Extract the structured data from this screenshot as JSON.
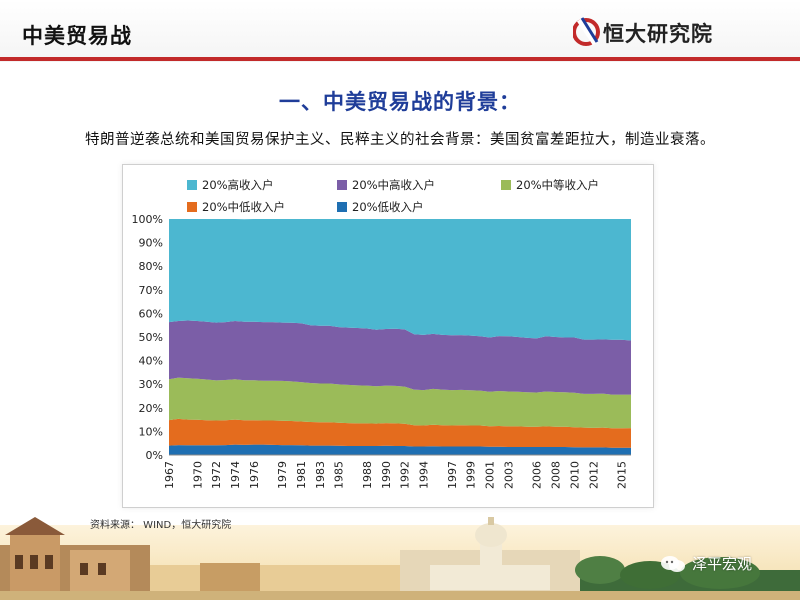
{
  "header": {
    "title": "中美贸易战",
    "brand_name": "恒大研究院",
    "brand_color": "#c22a2a"
  },
  "slide": {
    "title": "一、中美贸易战的背景：",
    "subtitle": "特朗普逆袭总统和美国贸易保护主义、民粹主义的社会背景：美国贫富差距拉大，制造业衰落。",
    "title_color": "#1f3d99"
  },
  "source_note": "资料来源：  WIND，恒大研究院",
  "watermark": "泽平宏观",
  "chart_data": {
    "type": "area",
    "stacked": true,
    "percent": true,
    "legend": [
      {
        "label": "20%高收入户",
        "color": "#4cb7d0"
      },
      {
        "label": "20%中高收入户",
        "color": "#7b5ea7"
      },
      {
        "label": "20%中等收入户",
        "color": "#9bbb59"
      },
      {
        "label": "20%中低收入户",
        "color": "#e46c1e"
      },
      {
        "label": "20%低收入户",
        "color": "#1f6fb2"
      }
    ],
    "legend_position": "top",
    "x": [
      1967,
      1968,
      1969,
      1970,
      1971,
      1972,
      1973,
      1974,
      1975,
      1976,
      1977,
      1978,
      1979,
      1980,
      1981,
      1982,
      1983,
      1984,
      1985,
      1986,
      1987,
      1988,
      1989,
      1990,
      1991,
      1992,
      1993,
      1994,
      1995,
      1996,
      1997,
      1998,
      1999,
      2000,
      2001,
      2002,
      2003,
      2004,
      2005,
      2006,
      2007,
      2008,
      2009,
      2010,
      2011,
      2012,
      2013,
      2014,
      2015,
      2016
    ],
    "x_tick_labels": [
      "1967",
      "1970",
      "1972",
      "1974",
      "1976",
      "1979",
      "1981",
      "1983",
      "1985",
      "1988",
      "1990",
      "1992",
      "1994",
      "1997",
      "1999",
      "2001",
      "2003",
      "2006",
      "2008",
      "2010",
      "2012",
      "2015"
    ],
    "x_tick_years": [
      1967,
      1970,
      1972,
      1974,
      1976,
      1979,
      1981,
      1983,
      1985,
      1988,
      1990,
      1992,
      1994,
      1997,
      1999,
      2001,
      2003,
      2006,
      2008,
      2010,
      2012,
      2015
    ],
    "y_tick_labels": [
      "0%",
      "10%",
      "20%",
      "30%",
      "40%",
      "50%",
      "60%",
      "70%",
      "80%",
      "90%",
      "100%"
    ],
    "ylim": [
      0,
      100
    ],
    "series": [
      {
        "name": "20%低收入户",
        "color": "#1f6fb2",
        "values": [
          4.0,
          4.2,
          4.1,
          4.1,
          4.1,
          4.1,
          4.2,
          4.4,
          4.3,
          4.4,
          4.4,
          4.3,
          4.2,
          4.2,
          4.1,
          4.0,
          4.0,
          4.0,
          3.9,
          3.8,
          3.8,
          3.8,
          3.8,
          3.9,
          3.8,
          3.8,
          3.6,
          3.6,
          3.7,
          3.6,
          3.6,
          3.6,
          3.6,
          3.6,
          3.5,
          3.5,
          3.4,
          3.4,
          3.4,
          3.4,
          3.4,
          3.4,
          3.4,
          3.3,
          3.2,
          3.2,
          3.2,
          3.1,
          3.1,
          3.1
        ]
      },
      {
        "name": "20%中低收入户",
        "color": "#e46c1e",
        "values": [
          10.8,
          11.1,
          10.9,
          10.8,
          10.6,
          10.5,
          10.5,
          10.6,
          10.4,
          10.3,
          10.2,
          10.3,
          10.3,
          10.2,
          10.1,
          10.0,
          9.9,
          9.9,
          9.8,
          9.7,
          9.6,
          9.6,
          9.5,
          9.6,
          9.6,
          9.4,
          9.0,
          8.9,
          9.1,
          9.0,
          8.9,
          9.0,
          8.9,
          8.9,
          8.7,
          8.8,
          8.7,
          8.7,
          8.6,
          8.6,
          8.7,
          8.6,
          8.6,
          8.5,
          8.4,
          8.3,
          8.4,
          8.2,
          8.2,
          8.3
        ]
      },
      {
        "name": "20%中等收入户",
        "color": "#9bbb59",
        "values": [
          17.3,
          17.5,
          17.5,
          17.4,
          17.3,
          17.0,
          17.1,
          17.1,
          17.0,
          17.0,
          16.9,
          16.9,
          16.9,
          16.8,
          16.7,
          16.5,
          16.4,
          16.4,
          16.2,
          16.2,
          16.1,
          16.0,
          15.8,
          15.9,
          15.9,
          15.8,
          15.1,
          15.0,
          15.2,
          15.1,
          15.0,
          15.0,
          14.9,
          14.8,
          14.6,
          14.8,
          14.8,
          14.7,
          14.6,
          14.5,
          14.8,
          14.7,
          14.6,
          14.6,
          14.3,
          14.4,
          14.4,
          14.3,
          14.3,
          14.2
        ]
      },
      {
        "name": "20%中高收入户",
        "color": "#7b5ea7",
        "values": [
          24.2,
          24.0,
          24.5,
          24.5,
          24.5,
          24.5,
          24.5,
          24.7,
          24.8,
          24.8,
          24.8,
          24.8,
          24.7,
          24.8,
          24.9,
          24.5,
          24.5,
          24.5,
          24.3,
          24.3,
          24.3,
          24.2,
          24.0,
          24.0,
          24.2,
          24.2,
          23.5,
          23.4,
          23.3,
          23.2,
          23.2,
          23.2,
          23.2,
          23.0,
          23.0,
          23.3,
          23.4,
          23.2,
          23.0,
          22.9,
          23.4,
          23.3,
          23.2,
          23.4,
          23.0,
          23.0,
          23.0,
          23.2,
          23.2,
          22.9
        ]
      },
      {
        "name": "20%高收入户",
        "color": "#4cb7d0",
        "values": [
          43.7,
          43.2,
          43.0,
          43.2,
          43.5,
          43.9,
          43.7,
          43.2,
          43.4,
          43.5,
          43.7,
          43.7,
          43.9,
          44.0,
          44.2,
          45.0,
          45.2,
          45.2,
          45.8,
          46.0,
          46.2,
          46.4,
          46.9,
          46.6,
          46.5,
          46.8,
          48.8,
          49.1,
          48.7,
          49.1,
          49.3,
          49.2,
          49.4,
          49.7,
          50.2,
          49.6,
          49.7,
          50.0,
          50.4,
          50.6,
          49.7,
          50.0,
          50.2,
          50.2,
          51.1,
          51.1,
          51.0,
          51.2,
          51.2,
          51.5
        ]
      }
    ]
  }
}
